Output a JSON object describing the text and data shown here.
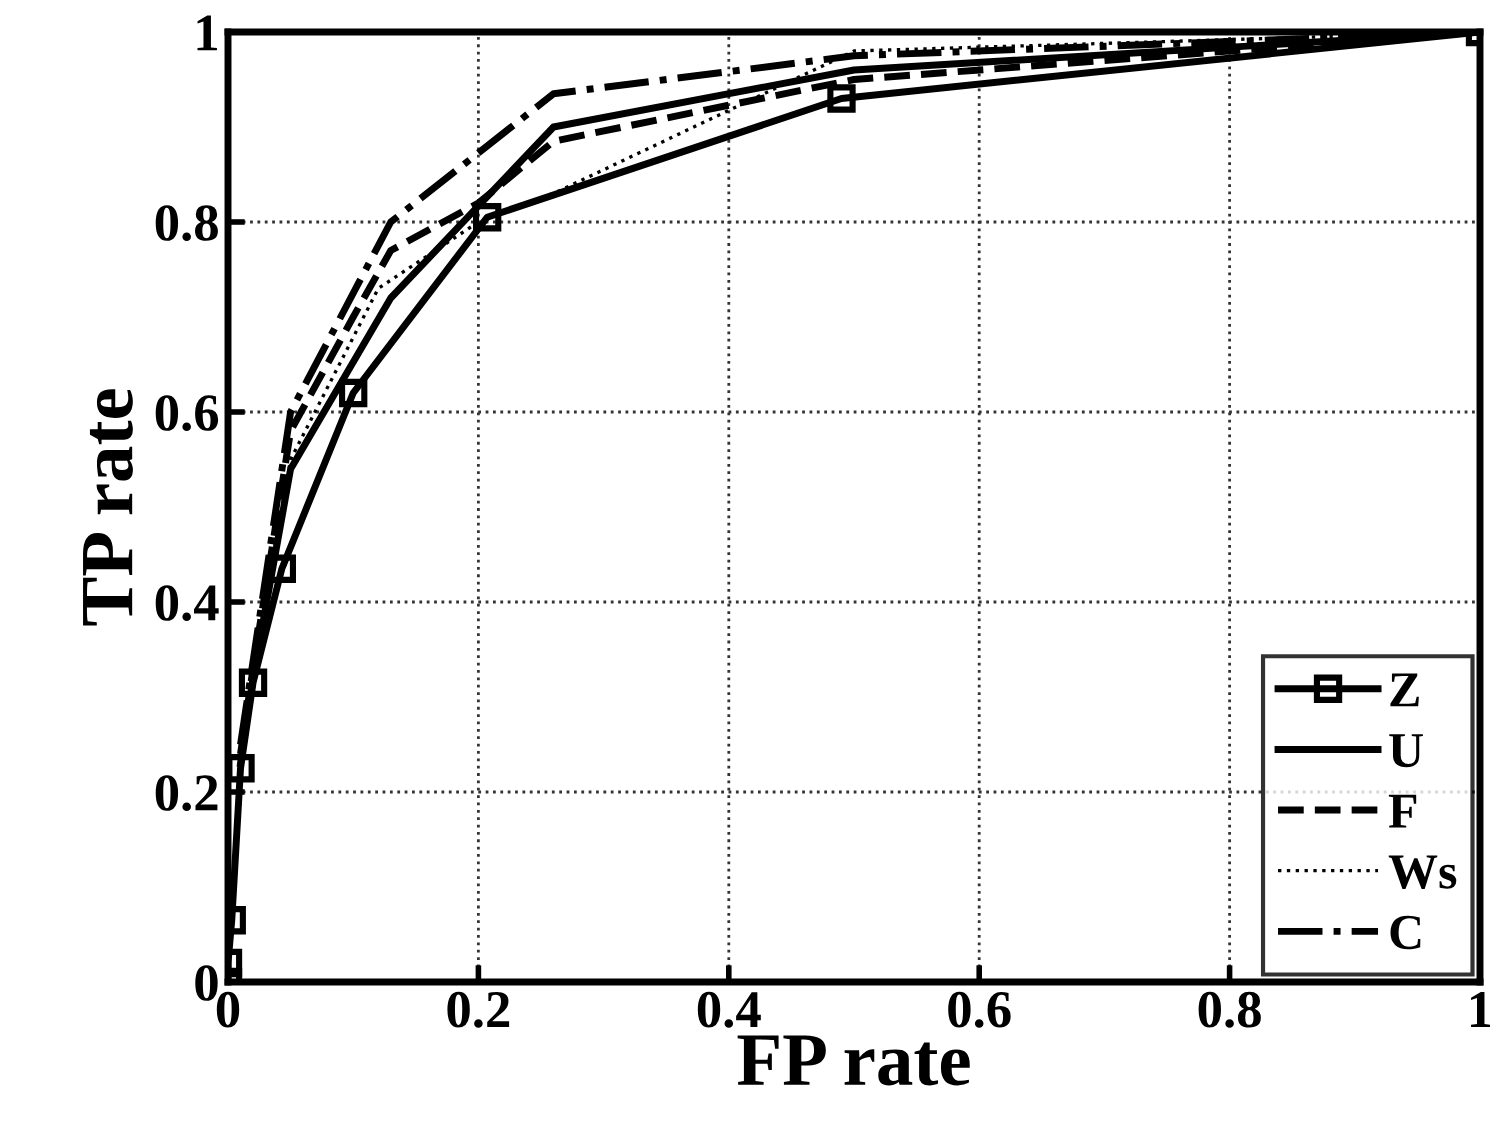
{
  "chart_data": {
    "type": "line",
    "xlabel": "FP rate",
    "ylabel": "TP rate",
    "xlim": [
      0,
      1
    ],
    "ylim": [
      0,
      1
    ],
    "xticks": [
      0,
      0.2,
      0.4,
      0.6,
      0.8,
      1
    ],
    "yticks": [
      0,
      0.2,
      0.4,
      0.6,
      0.8,
      1
    ],
    "grid": true,
    "legend": "bottom right",
    "series": [
      {
        "name": "Z",
        "color": "#000000",
        "marker": "square",
        "line_style": "solid",
        "x": [
          0,
          0,
          0.003,
          0.01,
          0.02,
          0.043,
          0.1,
          0.207,
          0.49,
          1
        ],
        "values": [
          0,
          0.02,
          0.065,
          0.225,
          0.315,
          0.435,
          0.62,
          0.805,
          0.93,
          1
        ]
      },
      {
        "name": "U",
        "color": "#000000",
        "marker": "none",
        "line_style": "solid",
        "x": [
          0.01,
          0.02,
          0.05,
          0.13,
          0.26,
          0.5,
          1
        ],
        "values": [
          0.23,
          0.32,
          0.54,
          0.72,
          0.9,
          0.96,
          1
        ]
      },
      {
        "name": "F",
        "color": "#000000",
        "marker": "none",
        "line_style": "dashed",
        "x": [
          0.01,
          0.02,
          0.05,
          0.1,
          0.13,
          0.2,
          0.26,
          0.5,
          1
        ],
        "values": [
          0.24,
          0.33,
          0.58,
          0.7,
          0.77,
          0.82,
          0.885,
          0.95,
          1
        ]
      },
      {
        "name": "Ws",
        "color": "#000000",
        "marker": "none",
        "line_style": "dotted",
        "x": [
          0.02,
          0.05,
          0.12,
          0.2,
          0.26,
          0.5,
          1
        ],
        "values": [
          0.33,
          0.55,
          0.73,
          0.8,
          0.83,
          0.98,
          1
        ]
      },
      {
        "name": "C",
        "color": "#000000",
        "marker": "none",
        "line_style": "dashdot",
        "x": [
          0.01,
          0.05,
          0.13,
          0.26,
          0.5,
          1
        ],
        "values": [
          0.25,
          0.6,
          0.8,
          0.935,
          0.975,
          1
        ]
      }
    ]
  }
}
